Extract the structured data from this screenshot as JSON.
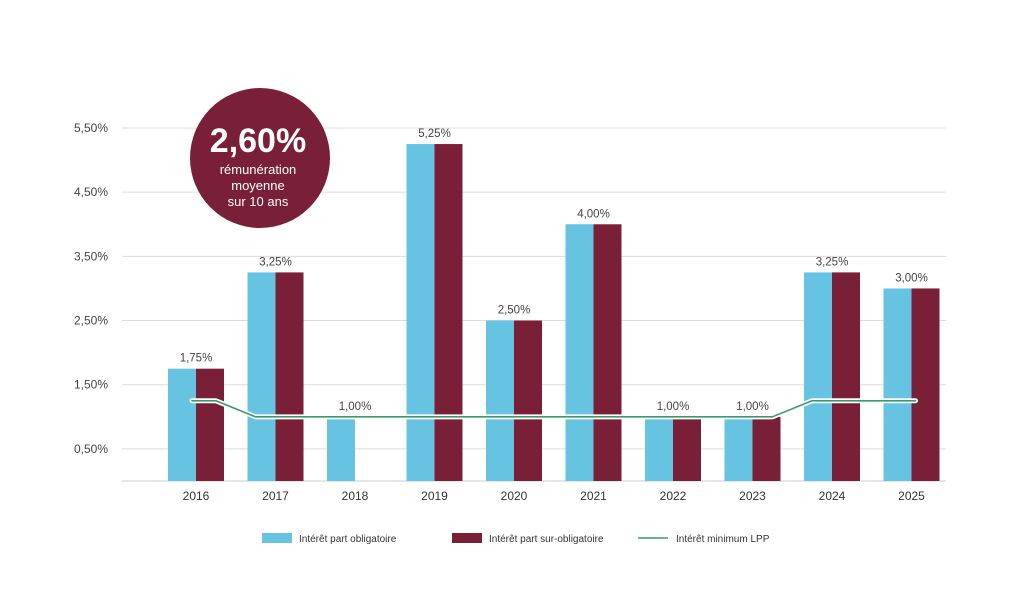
{
  "chart_data": {
    "type": "bar",
    "categories": [
      "2016",
      "2017",
      "2018",
      "2019",
      "2020",
      "2021",
      "2022",
      "2023",
      "2024",
      "2025"
    ],
    "series": [
      {
        "name": "Intérêt part obligatoire",
        "kind": "bar",
        "color": "#66c3e1",
        "values": [
          1.75,
          3.25,
          1.0,
          5.25,
          2.5,
          4.0,
          1.0,
          1.0,
          3.25,
          3.0
        ]
      },
      {
        "name": "Intérêt part sur-obligatoire",
        "kind": "bar",
        "color": "#7a1f38",
        "values": [
          1.75,
          3.25,
          null,
          5.25,
          2.5,
          4.0,
          1.0,
          1.0,
          3.25,
          3.0
        ]
      },
      {
        "name": "Intérêt minimum LPP",
        "kind": "line",
        "color": "#3a9a6c",
        "values": [
          1.25,
          1.0,
          1.0,
          1.0,
          1.0,
          1.0,
          1.0,
          1.0,
          1.25,
          1.25
        ]
      }
    ],
    "data_labels": [
      "1,75%",
      "3,25%",
      "1,00%",
      "5,25%",
      "2,50%",
      "4,00%",
      "1,00%",
      "1,00%",
      "3,25%",
      "3,00%"
    ],
    "yticks": [
      0.5,
      1.5,
      2.5,
      3.5,
      4.5,
      5.5
    ],
    "ytick_labels": [
      "0,50%",
      "1,50%",
      "2,50%",
      "3,50%",
      "4,50%",
      "5,50%"
    ],
    "ylim": [
      0,
      5.5
    ],
    "grid": true,
    "legend_position": "bottom",
    "title": "",
    "xlabel": "",
    "ylabel": ""
  },
  "badge": {
    "value": "2,60%",
    "line1": "rémunération",
    "line2": "moyenne",
    "line3": "sur 10 ans",
    "color": "#7a1f38"
  }
}
